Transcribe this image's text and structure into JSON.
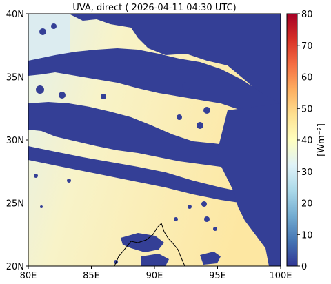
{
  "title": "UVA, direct ( 2026-04-11 04:30 UTC)",
  "map": {
    "lon_range": [
      80,
      100
    ],
    "lat_range": [
      20,
      40
    ],
    "x_ticks": [
      "80E",
      "85E",
      "90E",
      "95E",
      "100E"
    ],
    "y_ticks": [
      "20N",
      "25N",
      "30N",
      "35N",
      "40N"
    ]
  },
  "colorbar": {
    "label": "[Wm⁻²]",
    "ticks": [
      "0",
      "10",
      "20",
      "30",
      "40",
      "50",
      "60",
      "70",
      "80"
    ],
    "range": [
      0,
      80
    ],
    "colors": [
      "#313695",
      "#4575b4",
      "#74add1",
      "#abd9e9",
      "#e0f3f8",
      "#ffffbf",
      "#fee090",
      "#fdae61",
      "#f46d43",
      "#d73027",
      "#a50026"
    ]
  },
  "colors": {
    "cloud": "#343f96",
    "clear_low": "#eef6ea",
    "clear_high": "#fbeaa6",
    "coastline": "#000000"
  }
}
